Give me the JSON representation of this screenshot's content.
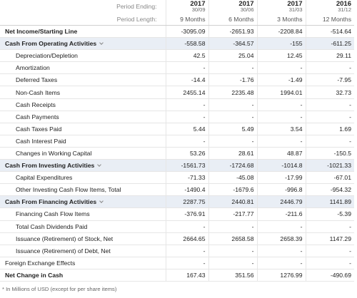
{
  "header": {
    "period_ending_label": "Period Ending:",
    "period_length_label": "Period Length:",
    "columns": [
      {
        "year": "2017",
        "date": "30/09",
        "length": "9 Months"
      },
      {
        "year": "2017",
        "date": "30/06",
        "length": "6 Months"
      },
      {
        "year": "2017",
        "date": "31/03",
        "length": "3 Months"
      },
      {
        "year": "2016",
        "date": "31/12",
        "length": "12 Months"
      }
    ]
  },
  "table": {
    "rows": [
      {
        "label": "Net Income/Starting Line",
        "style": "bold",
        "values": [
          "-3095.09",
          "-2651.93",
          "-2208.84",
          "-514.64"
        ]
      },
      {
        "label": "Cash From Operating Activities",
        "style": "section",
        "values": [
          "-558.58",
          "-364.57",
          "-155",
          "-611.25"
        ]
      },
      {
        "label": "Depreciation/Depletion",
        "style": "indent",
        "values": [
          "42.5",
          "25.04",
          "12.45",
          "29.11"
        ]
      },
      {
        "label": "Amortization",
        "style": "indent",
        "values": [
          "-",
          "-",
          "-",
          "-"
        ]
      },
      {
        "label": "Deferred Taxes",
        "style": "indent",
        "values": [
          "-14.4",
          "-1.76",
          "-1.49",
          "-7.95"
        ]
      },
      {
        "label": "Non-Cash Items",
        "style": "indent",
        "values": [
          "2455.14",
          "2235.48",
          "1994.01",
          "32.73"
        ]
      },
      {
        "label": "Cash Receipts",
        "style": "indent",
        "values": [
          "-",
          "-",
          "-",
          "-"
        ]
      },
      {
        "label": "Cash Payments",
        "style": "indent",
        "values": [
          "-",
          "-",
          "-",
          "-"
        ]
      },
      {
        "label": "Cash Taxes Paid",
        "style": "indent",
        "values": [
          "5.44",
          "5.49",
          "3.54",
          "1.69"
        ]
      },
      {
        "label": "Cash Interest Paid",
        "style": "indent",
        "values": [
          "-",
          "-",
          "-",
          "-"
        ]
      },
      {
        "label": "Changes in Working Capital",
        "style": "indent",
        "values": [
          "53.26",
          "28.61",
          "48.87",
          "-150.5"
        ]
      },
      {
        "label": "Cash From Investing Activities",
        "style": "section",
        "values": [
          "-1561.73",
          "-1724.68",
          "-1014.8",
          "-1021.33"
        ]
      },
      {
        "label": "Capital Expenditures",
        "style": "indent",
        "values": [
          "-71.33",
          "-45.08",
          "-17.99",
          "-67.01"
        ]
      },
      {
        "label": "Other Investing Cash Flow Items, Total",
        "style": "indent",
        "values": [
          "-1490.4",
          "-1679.6",
          "-996.8",
          "-954.32"
        ]
      },
      {
        "label": "Cash From Financing Activities",
        "style": "section",
        "values": [
          "2287.75",
          "2440.81",
          "2446.79",
          "1141.89"
        ]
      },
      {
        "label": "Financing Cash Flow Items",
        "style": "indent",
        "values": [
          "-376.91",
          "-217.77",
          "-211.6",
          "-5.39"
        ]
      },
      {
        "label": "Total Cash Dividends Paid",
        "style": "indent",
        "values": [
          "-",
          "-",
          "-",
          "-"
        ]
      },
      {
        "label": "Issuance (Retirement) of Stock, Net",
        "style": "indent",
        "values": [
          "2664.65",
          "2658.58",
          "2658.39",
          "1147.29"
        ]
      },
      {
        "label": "Issuance (Retirement) of Debt, Net",
        "style": "indent",
        "values": [
          "-",
          "-",
          "-",
          "-"
        ]
      },
      {
        "label": "Foreign Exchange Effects",
        "style": "plain",
        "values": [
          "-",
          "-",
          "-",
          "-"
        ]
      },
      {
        "label": "Net Change in Cash",
        "style": "bold",
        "values": [
          "167.43",
          "351.56",
          "1276.99",
          "-490.69"
        ]
      }
    ]
  },
  "footnote": "* In Millions of USD (except for per share items)"
}
